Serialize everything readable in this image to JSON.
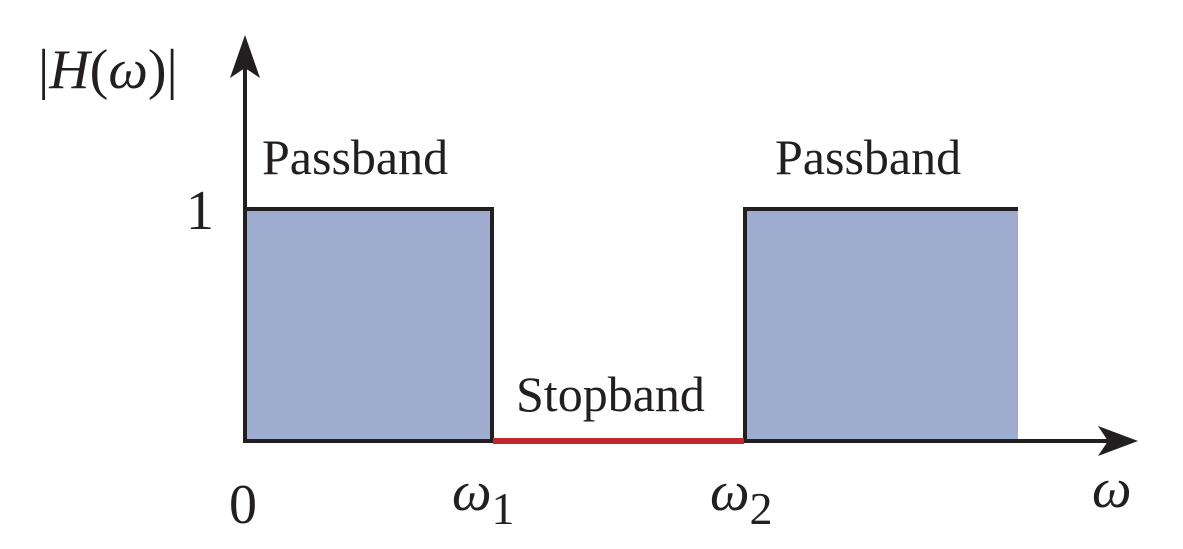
{
  "diagram": {
    "y_axis_label": {
      "open_bar": "|",
      "function": "H",
      "open_paren": "(",
      "variable": "ω",
      "close_paren": ")",
      "close_bar": "|"
    },
    "x_axis_label": "ω",
    "y_tick_label": "1",
    "x_tick_labels": {
      "origin": "0",
      "omega1_symbol": "ω",
      "omega1_subscript": "1",
      "omega2_symbol": "ω",
      "omega2_subscript": "2"
    },
    "band_labels": {
      "left_passband": "Passband",
      "right_passband": "Passband",
      "stopband": "Stopband"
    },
    "colors": {
      "passband_fill": "#9eacd0",
      "stopband_line": "#c1272d",
      "axis_and_outline": "#231f20"
    }
  }
}
